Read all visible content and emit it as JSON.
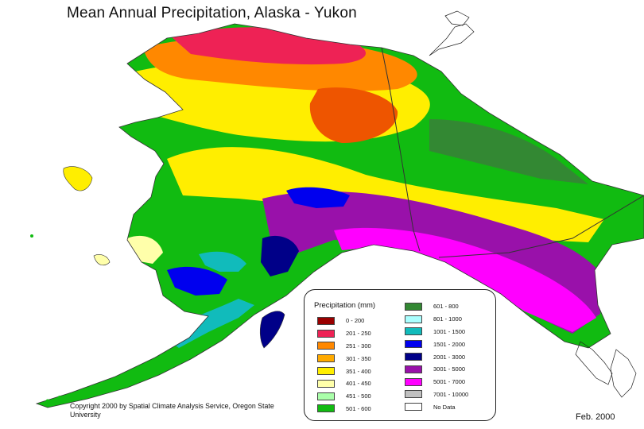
{
  "title": "Mean Annual Precipitation, Alaska - Yukon",
  "legend": {
    "title": "Precipitation (mm)",
    "left_items": [
      {
        "range": "0 - 200",
        "color": "#990000"
      },
      {
        "range": "201 - 250",
        "color": "#ee2255"
      },
      {
        "range": "251 - 300",
        "color": "#ff8800"
      },
      {
        "range": "301 - 350",
        "color": "#ffaa00"
      },
      {
        "range": "351 - 400",
        "color": "#ffee00"
      },
      {
        "range": "401 - 450",
        "color": "#ffffaa"
      },
      {
        "range": "451 - 500",
        "color": "#aaffaa"
      },
      {
        "range": "501 - 600",
        "color": "#11bb11"
      }
    ],
    "right_items": [
      {
        "range": "601 - 800",
        "color": "#338833"
      },
      {
        "range": "801 - 1000",
        "color": "#aaffff"
      },
      {
        "range": "1001 - 1500",
        "color": "#11bbbb"
      },
      {
        "range": "1501 - 2000",
        "color": "#0000ee"
      },
      {
        "range": "2001 - 3000",
        "color": "#000088"
      },
      {
        "range": "3001 - 5000",
        "color": "#9911aa"
      },
      {
        "range": "5001 - 7000",
        "color": "#ff00ff"
      },
      {
        "range": "7001 - 10000",
        "color": "#c0c0c0"
      },
      {
        "range": "No Data",
        "color": "#ffffff"
      }
    ]
  },
  "copyright": "Copyright 2000 by Spatial Climate Analysis Service, Oregon State University",
  "date": "Feb. 2000"
}
